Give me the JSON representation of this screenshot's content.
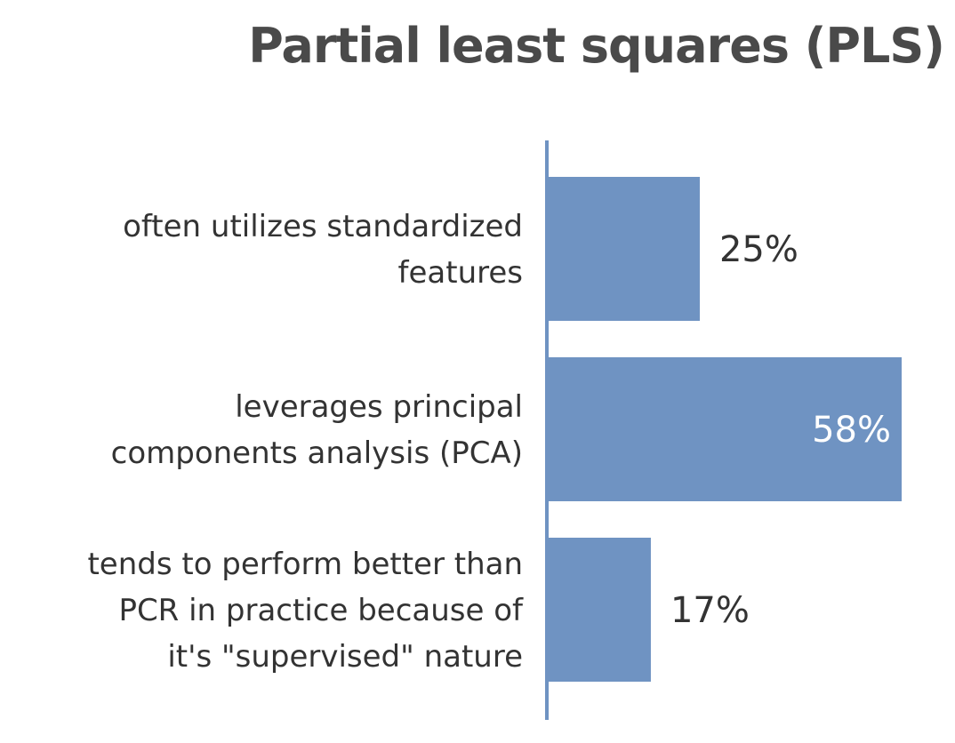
{
  "colors": {
    "bar": "#6f93c2",
    "axis": "#6f93c2",
    "title": "#4a4a4a",
    "text": "#333333",
    "inside_text": "#ffffff"
  },
  "chart_data": {
    "type": "bar",
    "orientation": "horizontal",
    "title": "Partial least squares (PLS)",
    "categories": [
      [
        "often utilizes standardized",
        "features"
      ],
      [
        "leverages principal",
        "components analysis (PCA)"
      ],
      [
        "tends to perform better than",
        "PCR in practice because of",
        "it's \"supervised\" nature"
      ]
    ],
    "values": [
      25,
      58,
      17
    ],
    "value_labels": [
      "25%",
      "58%",
      "17%"
    ],
    "xlim": [
      0,
      58
    ],
    "grid": false,
    "legend": "none"
  }
}
